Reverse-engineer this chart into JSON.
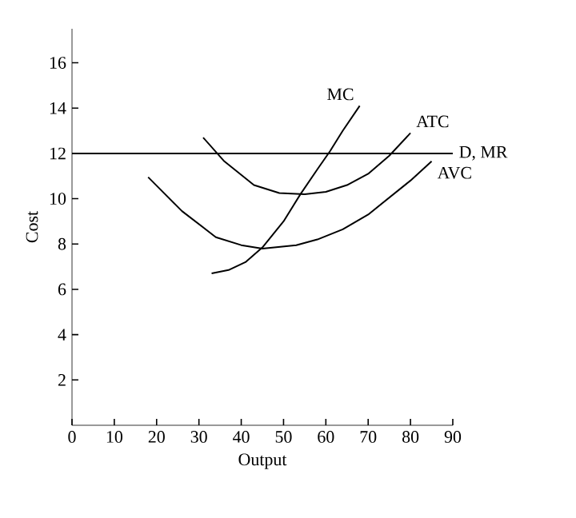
{
  "chart_data": {
    "type": "line",
    "xlabel": "Output",
    "ylabel": "Cost",
    "xlim": [
      0,
      90
    ],
    "ylim": [
      0,
      17.5
    ],
    "xticks": [
      0,
      10,
      20,
      30,
      40,
      50,
      60,
      70,
      80,
      90
    ],
    "yticks": [
      2,
      4,
      6,
      8,
      10,
      12,
      14,
      16
    ],
    "series": [
      {
        "name": "MC",
        "color": "#000000",
        "x": [
          33,
          37,
          41,
          45,
          50,
          54,
          58,
          61,
          64,
          68
        ],
        "values": [
          6.7,
          6.85,
          7.2,
          7.85,
          9.0,
          10.2,
          11.3,
          12.1,
          13.0,
          14.1
        ]
      },
      {
        "name": "ATC",
        "color": "#000000",
        "x": [
          31,
          36,
          43,
          49,
          55,
          60,
          65,
          70,
          75,
          80
        ],
        "values": [
          12.7,
          11.65,
          10.6,
          10.25,
          10.2,
          10.3,
          10.6,
          11.1,
          11.9,
          12.9
        ]
      },
      {
        "name": "AVC",
        "color": "#000000",
        "x": [
          18,
          26,
          34,
          40,
          45,
          53,
          58,
          64,
          70,
          75,
          80,
          85
        ],
        "values": [
          10.95,
          9.45,
          8.3,
          7.95,
          7.8,
          7.95,
          8.2,
          8.65,
          9.3,
          10.05,
          10.8,
          11.65
        ]
      }
    ],
    "ref_lines": [
      {
        "axis": "y",
        "value": 12,
        "label": "D, MR",
        "color": "#000000"
      }
    ],
    "grid": false,
    "legend": false,
    "marker": "none",
    "line_style": "solid"
  }
}
